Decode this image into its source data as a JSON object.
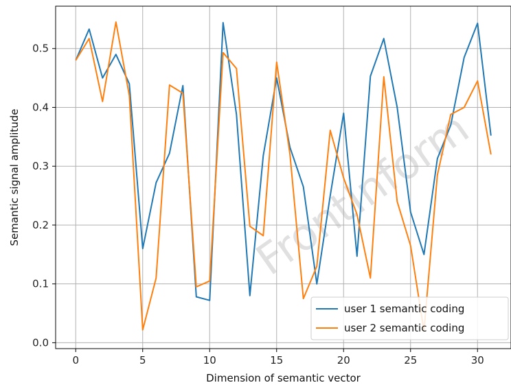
{
  "chart_data": {
    "type": "line",
    "title": "",
    "xlabel": "Dimension of semantic vector",
    "ylabel": "Semantic signal amplitude",
    "xlim": [
      -1.5,
      32.5
    ],
    "ylim": [
      -0.01,
      0.572
    ],
    "xticks": [
      0,
      5,
      10,
      15,
      20,
      25,
      30
    ],
    "yticks": [
      0.0,
      0.1,
      0.2,
      0.3,
      0.4,
      0.5
    ],
    "xtick_labels": [
      "0",
      "5",
      "10",
      "15",
      "20",
      "25",
      "30"
    ],
    "ytick_labels": [
      "0.0",
      "0.1",
      "0.2",
      "0.3",
      "0.4",
      "0.5"
    ],
    "grid": true,
    "legend_position": "lower-right",
    "x": [
      0,
      1,
      2,
      3,
      4,
      5,
      6,
      7,
      8,
      9,
      10,
      11,
      12,
      13,
      14,
      15,
      16,
      17,
      18,
      19,
      20,
      21,
      22,
      23,
      24,
      25,
      26,
      27,
      28,
      29,
      30,
      31
    ],
    "series": [
      {
        "name": "user 1 semantic coding",
        "color": "#1f77b4",
        "values": [
          0.48,
          0.533,
          0.45,
          0.49,
          0.44,
          0.16,
          0.272,
          0.322,
          0.437,
          0.078,
          0.072,
          0.544,
          0.388,
          0.08,
          0.318,
          0.45,
          0.332,
          0.265,
          0.1,
          0.25,
          0.39,
          0.147,
          0.453,
          0.517,
          0.4,
          0.222,
          0.15,
          0.313,
          0.37,
          0.485,
          0.543,
          0.352
        ]
      },
      {
        "name": "user 2 semantic coding",
        "color": "#ff7f0e",
        "values": [
          0.48,
          0.517,
          0.41,
          0.545,
          0.42,
          0.022,
          0.11,
          0.438,
          0.424,
          0.095,
          0.105,
          0.493,
          0.466,
          0.198,
          0.182,
          0.477,
          0.32,
          0.075,
          0.13,
          0.361,
          0.28,
          0.218,
          0.11,
          0.452,
          0.24,
          0.165,
          0.02,
          0.285,
          0.388,
          0.4,
          0.445,
          0.32
        ]
      }
    ]
  },
  "watermark": "FrontInform"
}
